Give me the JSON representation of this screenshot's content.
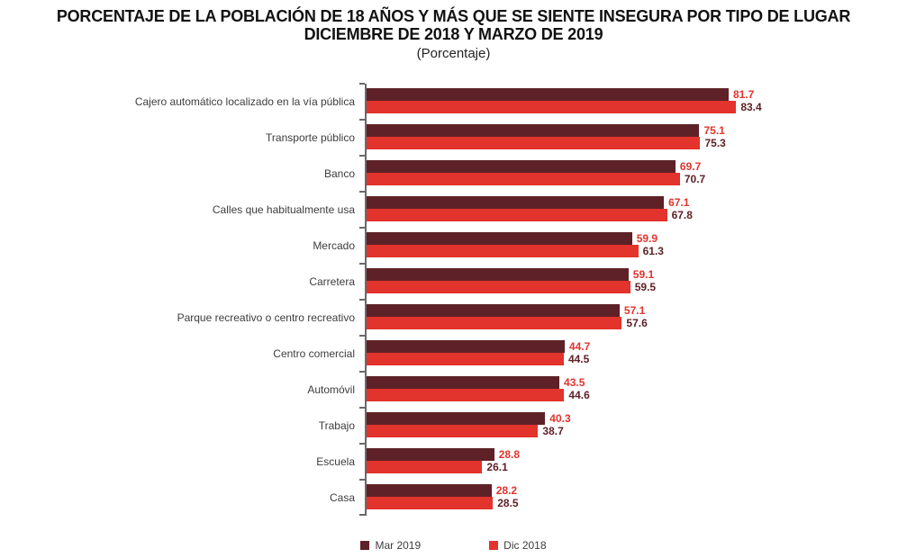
{
  "title": {
    "line1": "PORCENTAJE DE LA POBLACIÓN DE 18 AÑOS Y MÁS QUE SE SIENTE INSEGURA POR TIPO DE LUGAR",
    "line2": "DICIEMBRE DE 2018 Y MARZO DE 2019",
    "subtitle": "(Porcentaje)"
  },
  "colors": {
    "mar_2019_bar": "#5E2127",
    "dic_2018_bar": "#E2332C",
    "axis": "#6A6A6A",
    "category_label_text": "#3D3D3D",
    "title_text": "#111111"
  },
  "chart_data": {
    "type": "bar",
    "orientation": "horizontal",
    "title": "PORCENTAJE DE LA POBLACIÓN DE 18 AÑOS Y MÁS QUE SE SIENTE INSEGURA POR TIPO DE LUGAR DICIEMBRE DE 2018 Y MARZO DE 2019",
    "subtitle": "(Porcentaje)",
    "categories": [
      "Cajero automático localizado en la vía pública",
      "Transporte público",
      "Banco",
      "Calles que habitualmente usa",
      "Mercado",
      "Carretera",
      "Parque recreativo o centro recreativo",
      "Centro comercial",
      "Automóvil",
      "Trabajo",
      "Escuela",
      "Casa"
    ],
    "series": [
      {
        "name": "Mar 2019",
        "color": "#5E2127",
        "value_label_color": "#E2332C",
        "values": [
          81.7,
          75.1,
          69.7,
          67.1,
          59.9,
          59.1,
          57.1,
          44.7,
          43.5,
          40.3,
          28.8,
          28.2
        ]
      },
      {
        "name": "Dic 2018",
        "color": "#E2332C",
        "value_label_color": "#5E2127",
        "values": [
          83.4,
          75.3,
          70.7,
          67.8,
          61.3,
          59.5,
          57.6,
          44.5,
          44.6,
          38.7,
          26.1,
          28.5
        ]
      }
    ],
    "xlim": [
      0,
      100
    ],
    "value_labels": true,
    "grid": false,
    "legend_position": "bottom"
  }
}
